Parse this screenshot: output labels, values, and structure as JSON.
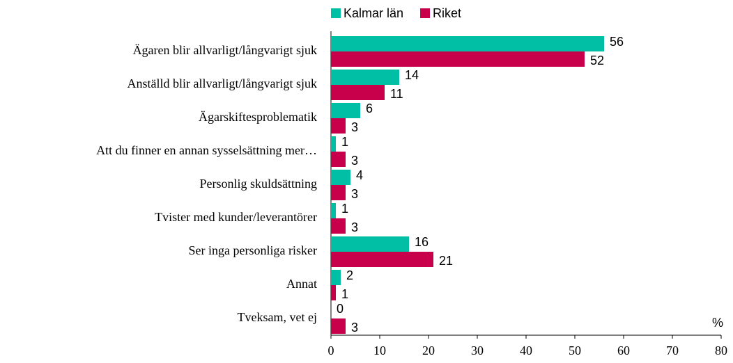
{
  "chart_data": {
    "type": "bar",
    "orientation": "horizontal",
    "categories": [
      "Ägaren blir allvarligt/långvarigt sjuk",
      "Anställd blir allvarligt/långvarigt sjuk",
      "Ägarskiftesproblematik",
      "Att du finner en annan sysselsättning mer…",
      "Personlig skuldsättning",
      "Tvister med kunder/leverantörer",
      "Ser inga personliga risker",
      "Annat",
      "Tveksam, vet ej"
    ],
    "series": [
      {
        "name": "Kalmar län",
        "color": "#00bfa5",
        "values": [
          56,
          14,
          6,
          1,
          4,
          1,
          16,
          2,
          0
        ]
      },
      {
        "name": "Riket",
        "color": "#c8004c",
        "values": [
          52,
          11,
          3,
          3,
          3,
          3,
          21,
          1,
          3
        ]
      }
    ],
    "xlim": [
      0,
      80
    ],
    "xticks": [
      0,
      10,
      20,
      30,
      40,
      50,
      60,
      70,
      80
    ],
    "unit_label": "%",
    "legend": "top",
    "grid": false
  }
}
